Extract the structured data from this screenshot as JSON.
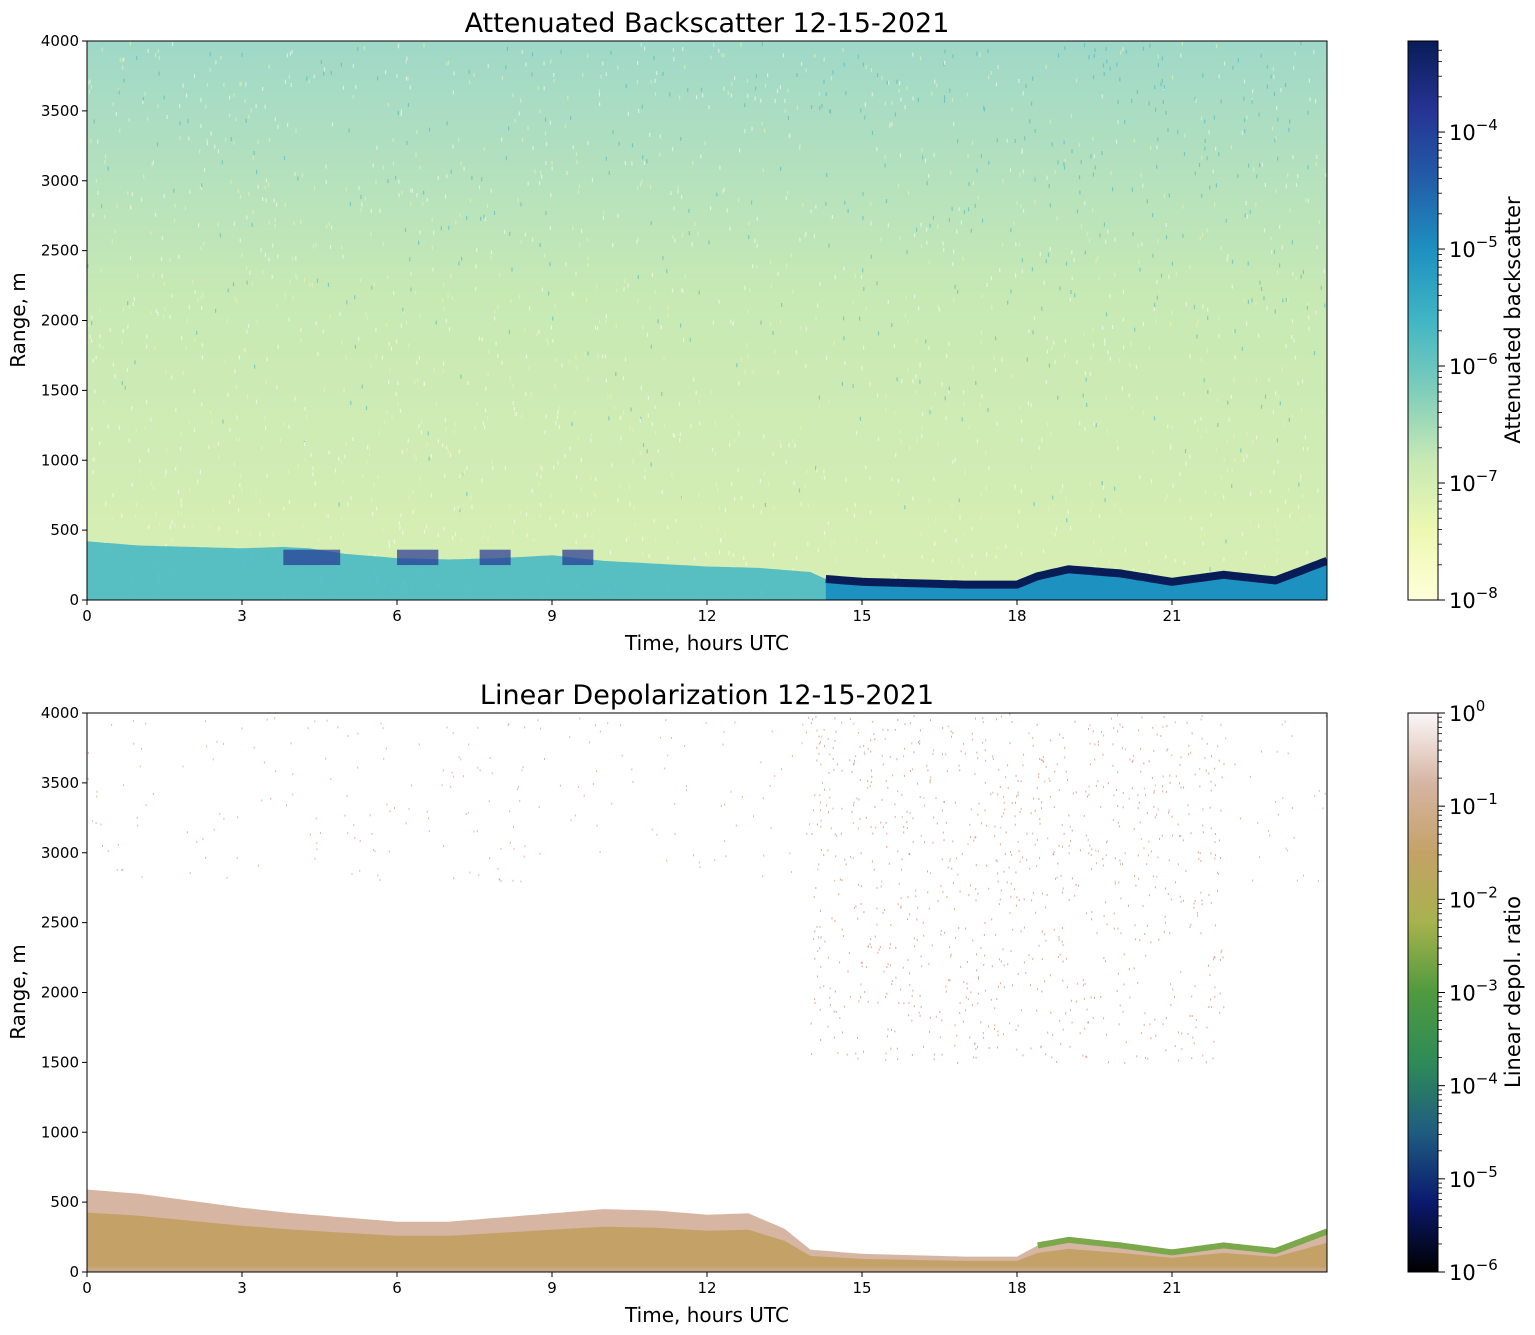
{
  "colors": {
    "backscatter_scale": [
      "#ffffd9",
      "#edf8b1",
      "#c7e9b4",
      "#7fcdbb",
      "#41b6c4",
      "#1d91c0",
      "#225ea8",
      "#253494",
      "#081d58"
    ],
    "depol_scale": [
      "#000000",
      "#0a1a6e",
      "#1f5c80",
      "#2e8b57",
      "#4f9a3f",
      "#a7b24d",
      "#c4a267",
      "#d6b5a3",
      "#fbf7f7"
    ]
  },
  "chart_data": [
    {
      "type": "heatmap",
      "title": "Attenuated Backscatter 12-15-2021",
      "xlabel": "Time, hours UTC",
      "ylabel": "Range, m",
      "xlim": [
        0,
        24
      ],
      "ylim": [
        0,
        4000
      ],
      "xticks": [
        0,
        3,
        6,
        9,
        12,
        15,
        18,
        21
      ],
      "yticks": [
        0,
        500,
        1000,
        1500,
        2000,
        2500,
        3000,
        3500,
        4000
      ],
      "colorbar": {
        "label": "Attenuated backscatter",
        "scale": "log",
        "range": [
          1e-08,
          0.0006
        ],
        "ticks": [
          {
            "base": "10",
            "exp": "−8",
            "value": 1e-08
          },
          {
            "base": "10",
            "exp": "−7",
            "value": 1e-07
          },
          {
            "base": "10",
            "exp": "−6",
            "value": 1e-06
          },
          {
            "base": "10",
            "exp": "−5",
            "value": 1e-05
          },
          {
            "base": "10",
            "exp": "−4",
            "value": 0.0001
          }
        ]
      },
      "layer_top_m": [
        [
          0,
          420
        ],
        [
          1,
          390
        ],
        [
          2,
          380
        ],
        [
          3,
          370
        ],
        [
          3.8,
          380
        ],
        [
          4.3,
          370
        ],
        [
          5,
          330
        ],
        [
          6,
          300
        ],
        [
          7,
          290
        ],
        [
          8,
          300
        ],
        [
          9,
          320
        ],
        [
          10,
          280
        ],
        [
          11,
          260
        ],
        [
          12,
          240
        ],
        [
          13,
          230
        ],
        [
          14,
          200
        ],
        [
          14.3,
          150
        ],
        [
          15,
          130
        ],
        [
          16,
          120
        ],
        [
          17,
          110
        ],
        [
          18,
          110
        ],
        [
          18.4,
          170
        ],
        [
          19,
          220
        ],
        [
          20,
          190
        ],
        [
          21,
          130
        ],
        [
          22,
          180
        ],
        [
          23,
          140
        ],
        [
          24,
          280
        ]
      ],
      "grid": false
    },
    {
      "type": "heatmap",
      "title": "Linear Depolarization 12-15-2021",
      "xlabel": "Time, hours UTC",
      "ylabel": "Range, m",
      "xlim": [
        0,
        24
      ],
      "ylim": [
        0,
        4000
      ],
      "xticks": [
        0,
        3,
        6,
        9,
        12,
        15,
        18,
        21
      ],
      "yticks": [
        0,
        500,
        1000,
        1500,
        2000,
        2500,
        3000,
        3500,
        4000
      ],
      "colorbar": {
        "label": "Linear depol. ratio",
        "scale": "log",
        "range": [
          1e-06,
          1
        ],
        "ticks": [
          {
            "base": "10",
            "exp": "−6",
            "value": 1e-06
          },
          {
            "base": "10",
            "exp": "−5",
            "value": 1e-05
          },
          {
            "base": "10",
            "exp": "−4",
            "value": 0.0001
          },
          {
            "base": "10",
            "exp": "−3",
            "value": 0.001
          },
          {
            "base": "10",
            "exp": "−2",
            "value": 0.01
          },
          {
            "base": "10",
            "exp": "−1",
            "value": 0.1
          },
          {
            "base": "10",
            "exp": "0",
            "value": 1
          }
        ]
      },
      "layer_top_m": [
        [
          0,
          590
        ],
        [
          1,
          560
        ],
        [
          2,
          510
        ],
        [
          3,
          460
        ],
        [
          4,
          420
        ],
        [
          5,
          390
        ],
        [
          6,
          360
        ],
        [
          7,
          360
        ],
        [
          8,
          390
        ],
        [
          9,
          420
        ],
        [
          10,
          450
        ],
        [
          11,
          440
        ],
        [
          12,
          410
        ],
        [
          12.8,
          420
        ],
        [
          13.5,
          310
        ],
        [
          14,
          160
        ],
        [
          15,
          130
        ],
        [
          16,
          120
        ],
        [
          17,
          110
        ],
        [
          18,
          110
        ],
        [
          18.4,
          190
        ],
        [
          19,
          230
        ],
        [
          20,
          190
        ],
        [
          21,
          140
        ],
        [
          22,
          190
        ],
        [
          23,
          150
        ],
        [
          24,
          290
        ]
      ],
      "grid": false
    }
  ]
}
